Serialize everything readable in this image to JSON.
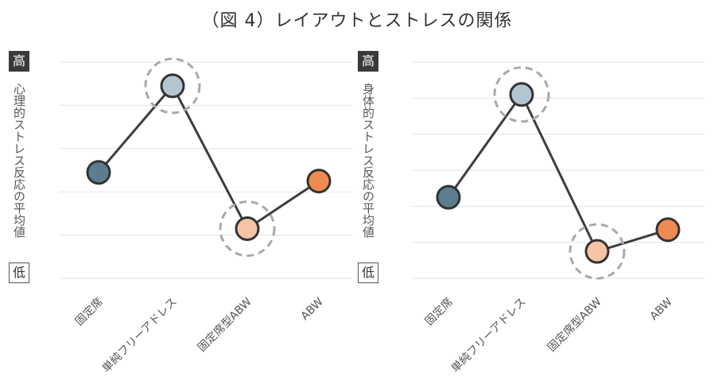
{
  "title": "（図 4）レイアウトとストレスの関係",
  "colors": {
    "series_line": "#3d3d3d",
    "gridline": "#e3e3e3",
    "highlight_ring": "#a8a8a8",
    "point_colors": [
      "#5c7d8f",
      "#b3c5d0",
      "#f6c3a5",
      "#ef8a50"
    ]
  },
  "badges": {
    "high": "高",
    "low": "低"
  },
  "chart_data": [
    {
      "type": "line",
      "ylabel": "心理的ストレス反応の平均値",
      "categories": [
        "固定席",
        "単純フリーアドレス",
        "固定席型ABW",
        "ABW"
      ],
      "values": [
        2.45,
        4.45,
        1.15,
        2.25
      ],
      "ylim": [
        0,
        5
      ],
      "grid": true,
      "highlighted": [
        "単純フリーアドレス",
        "固定席型ABW"
      ]
    },
    {
      "type": "line",
      "ylabel": "身体的ストレス反応の平均値",
      "categories": [
        "固定席",
        "単純フリーアドレス",
        "固定席型ABW",
        "ABW"
      ],
      "values": [
        2.25,
        5.1,
        0.75,
        1.35
      ],
      "ylim": [
        0,
        6
      ],
      "grid": true,
      "highlighted": [
        "単純フリーアドレス",
        "固定席型ABW"
      ]
    }
  ]
}
